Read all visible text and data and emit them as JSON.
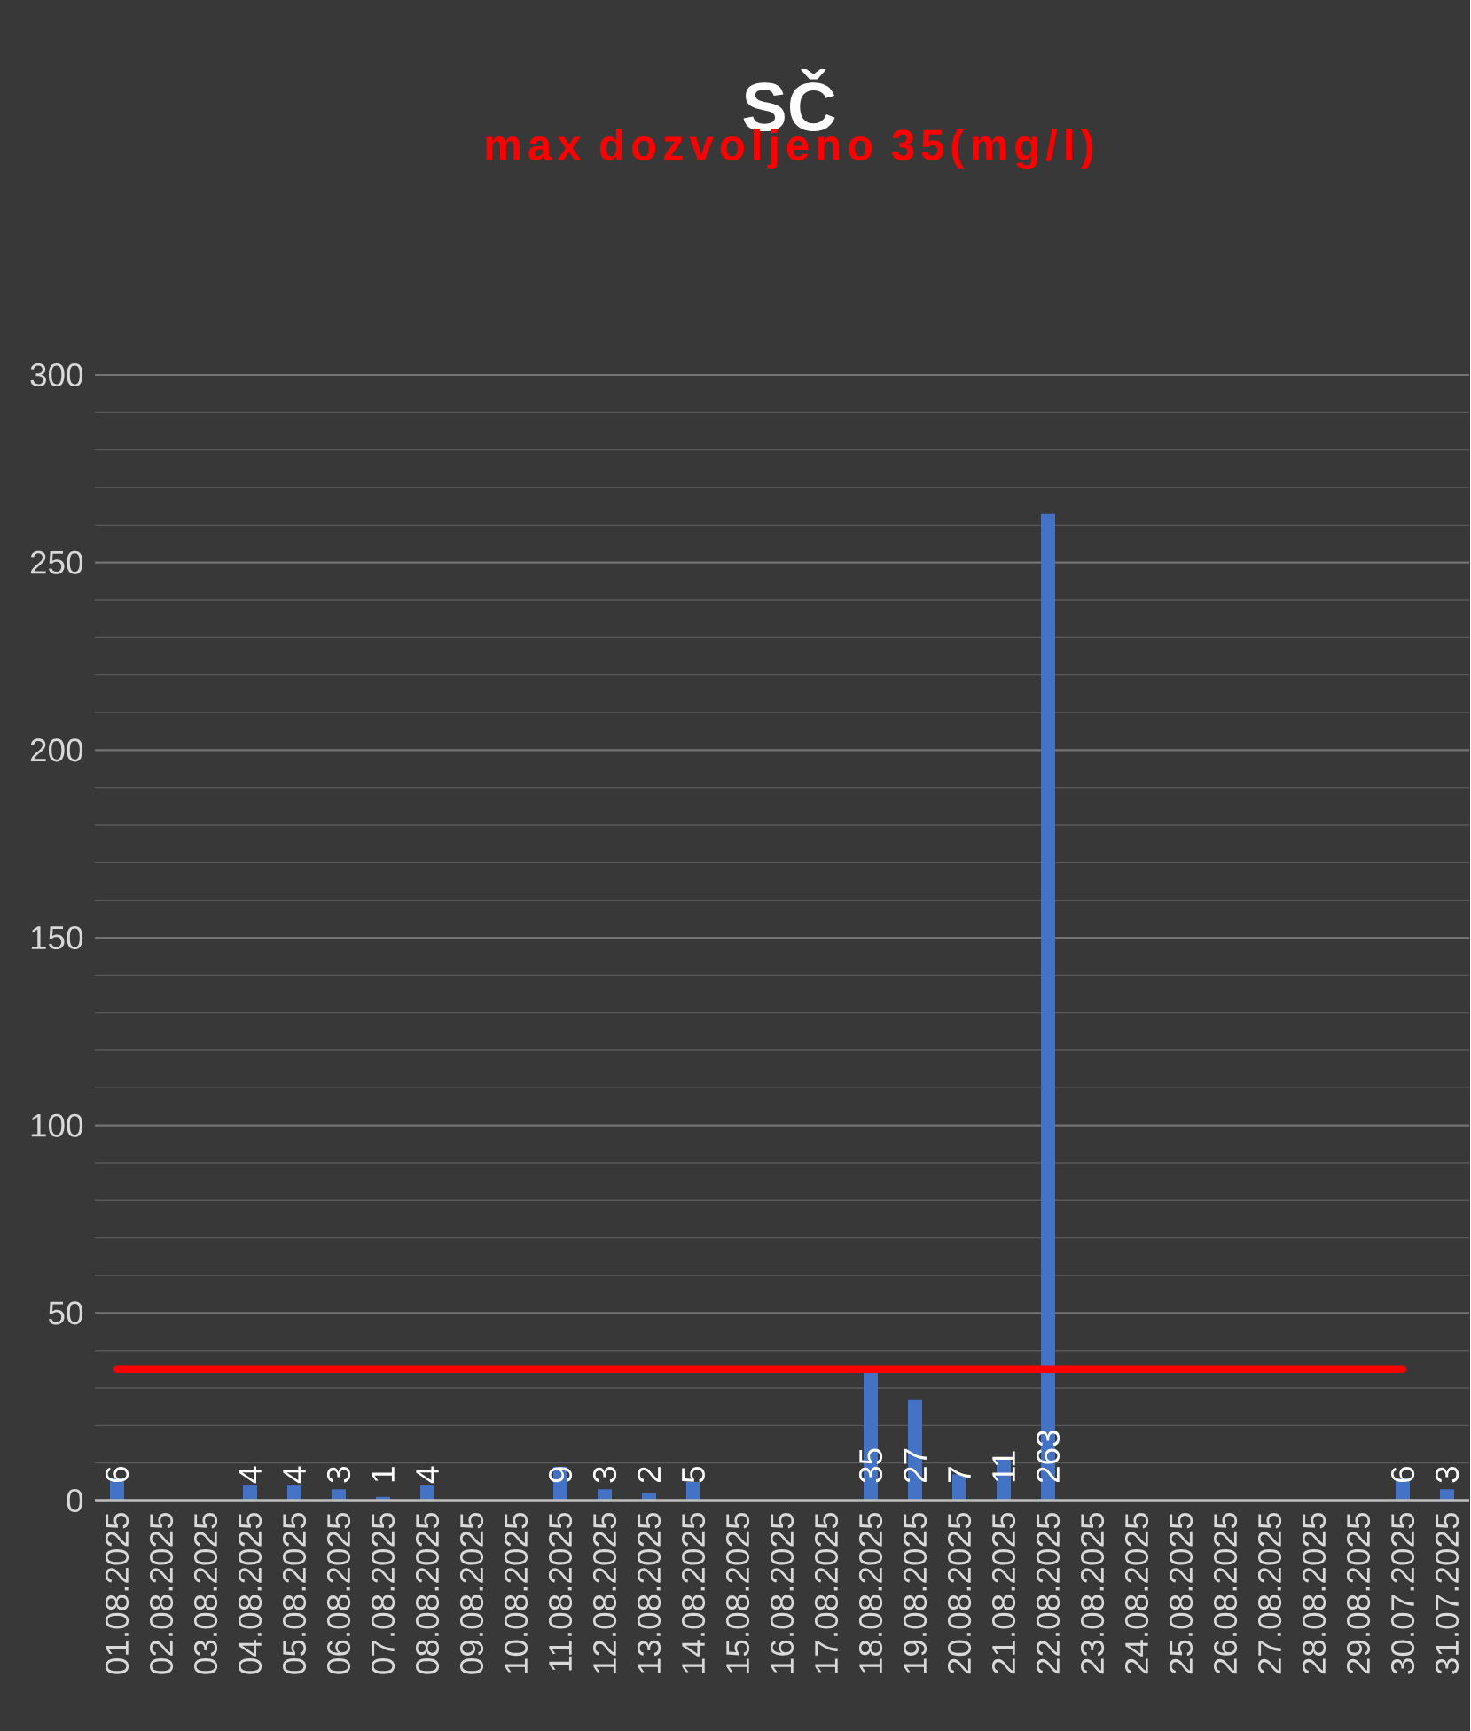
{
  "chart_data": {
    "type": "bar",
    "title": "SČ",
    "subtitle": "max dozvoljeno 35(mg/l)",
    "categories": [
      "01.08.2025",
      "02.08.2025",
      "03.08.2025",
      "04.08.2025",
      "05.08.2025",
      "06.08.2025",
      "07.08.2025",
      "08.08.2025",
      "09.08.2025",
      "10.08.2025",
      "11.08.2025",
      "12.08.2025",
      "13.08.2025",
      "14.08.2025",
      "15.08.2025",
      "16.08.2025",
      "17.08.2025",
      "18.08.2025",
      "19.08.2025",
      "20.08.2025",
      "21.08.2025",
      "22.08.2025",
      "23.08.2025",
      "24.08.2025",
      "25.08.2025",
      "26.08.2025",
      "27.08.2025",
      "28.08.2025",
      "29.08.2025",
      "30.07.2025",
      "31.07.2025"
    ],
    "values": [
      6,
      null,
      null,
      4,
      4,
      3,
      1,
      4,
      null,
      null,
      9,
      3,
      2,
      5,
      null,
      null,
      null,
      35,
      27,
      7,
      11,
      263,
      null,
      null,
      null,
      null,
      null,
      null,
      null,
      6,
      3
    ],
    "color": "#4472c4",
    "ylim": [
      0,
      300
    ],
    "yticks": [
      0,
      50,
      100,
      150,
      200,
      250,
      300
    ],
    "grid": "y",
    "data_labels": true,
    "ref_lines": [
      {
        "axis": "y",
        "value": 35,
        "color": "#ff0000"
      }
    ]
  }
}
